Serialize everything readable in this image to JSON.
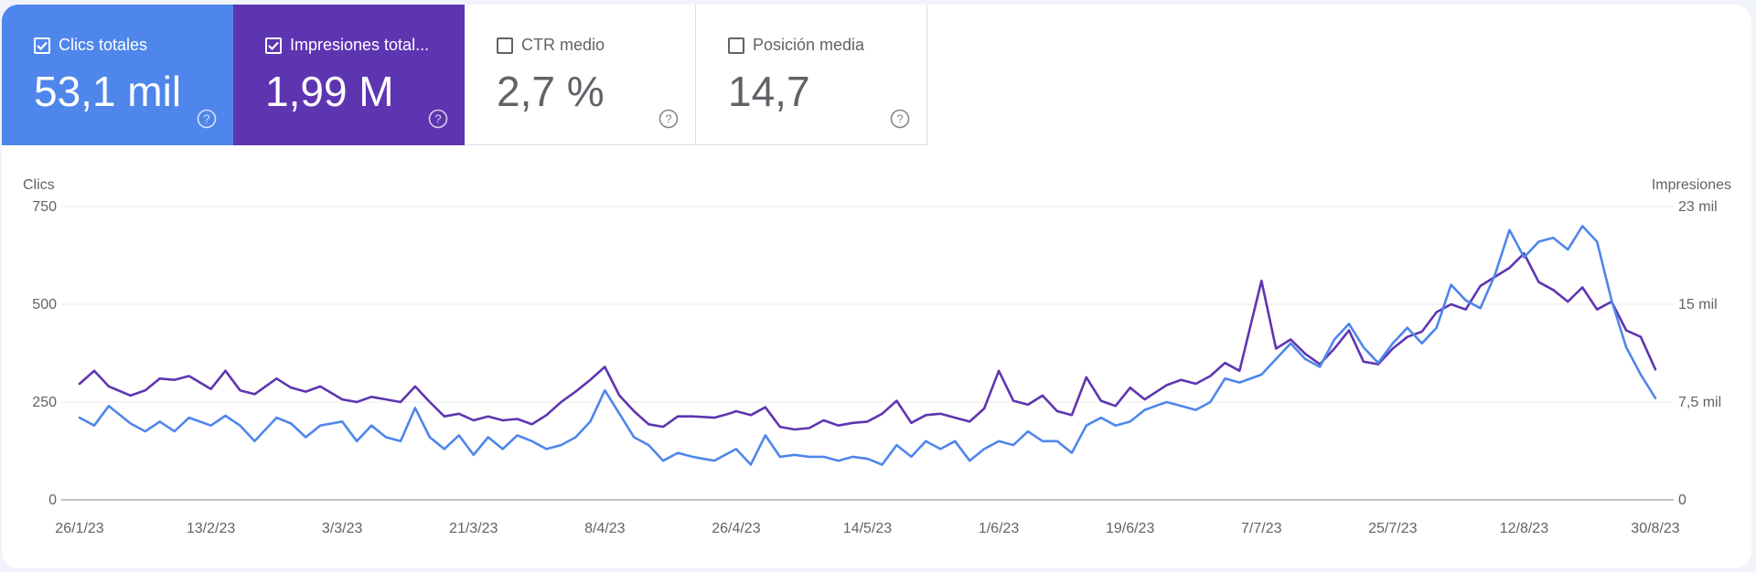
{
  "metrics": [
    {
      "label": "Clics totales",
      "value": "53,1 mil",
      "checked": true,
      "color": "#4f86ec"
    },
    {
      "label": "Impresiones total...",
      "value": "1,99 M",
      "checked": true,
      "color": "#5e35b1"
    },
    {
      "label": "CTR medio",
      "value": "2,7 %",
      "checked": false,
      "color": "#ffffff"
    },
    {
      "label": "Posición media",
      "value": "14,7",
      "checked": false,
      "color": "#ffffff"
    }
  ],
  "chart_data": {
    "type": "line",
    "ylabel_left": "Clics",
    "ylabel_right": "Impresiones",
    "y_left": {
      "min": 0,
      "max": 750,
      "ticks": [
        "0",
        "250",
        "500",
        "750"
      ]
    },
    "y_right": {
      "min": 0,
      "max": 22500,
      "ticks": [
        "0",
        "7,5 mil",
        "15 mil",
        "23 mil"
      ]
    },
    "x_start": "2023-01-26",
    "x_end": "2023-08-30",
    "x_ticks": [
      "26/1/23",
      "13/2/23",
      "3/3/23",
      "21/3/23",
      "8/4/23",
      "26/4/23",
      "14/5/23",
      "1/6/23",
      "19/6/23",
      "7/7/23",
      "25/7/23",
      "12/8/23",
      "30/8/23"
    ],
    "grid": true,
    "series": [
      {
        "name": "Clics totales",
        "axis": "left",
        "color": "#4f86ec",
        "points": [
          [
            "2023-01-26",
            210
          ],
          [
            "2023-01-28",
            190
          ],
          [
            "2023-01-30",
            240
          ],
          [
            "2023-02-02",
            195
          ],
          [
            "2023-02-04",
            175
          ],
          [
            "2023-02-06",
            200
          ],
          [
            "2023-02-08",
            175
          ],
          [
            "2023-02-10",
            210
          ],
          [
            "2023-02-13",
            190
          ],
          [
            "2023-02-15",
            215
          ],
          [
            "2023-02-17",
            190
          ],
          [
            "2023-02-19",
            150
          ],
          [
            "2023-02-22",
            210
          ],
          [
            "2023-02-24",
            195
          ],
          [
            "2023-02-26",
            160
          ],
          [
            "2023-02-28",
            190
          ],
          [
            "2023-03-03",
            200
          ],
          [
            "2023-03-05",
            150
          ],
          [
            "2023-03-07",
            190
          ],
          [
            "2023-03-09",
            160
          ],
          [
            "2023-03-11",
            150
          ],
          [
            "2023-03-13",
            235
          ],
          [
            "2023-03-15",
            160
          ],
          [
            "2023-03-17",
            130
          ],
          [
            "2023-03-19",
            165
          ],
          [
            "2023-03-21",
            115
          ],
          [
            "2023-03-23",
            160
          ],
          [
            "2023-03-25",
            130
          ],
          [
            "2023-03-27",
            165
          ],
          [
            "2023-03-29",
            150
          ],
          [
            "2023-03-31",
            130
          ],
          [
            "2023-04-02",
            140
          ],
          [
            "2023-04-04",
            160
          ],
          [
            "2023-04-06",
            200
          ],
          [
            "2023-04-08",
            280
          ],
          [
            "2023-04-10",
            220
          ],
          [
            "2023-04-12",
            160
          ],
          [
            "2023-04-14",
            140
          ],
          [
            "2023-04-16",
            100
          ],
          [
            "2023-04-18",
            120
          ],
          [
            "2023-04-20",
            110
          ],
          [
            "2023-04-23",
            100
          ],
          [
            "2023-04-25",
            120
          ],
          [
            "2023-04-26",
            130
          ],
          [
            "2023-04-28",
            90
          ],
          [
            "2023-04-30",
            165
          ],
          [
            "2023-05-02",
            110
          ],
          [
            "2023-05-04",
            115
          ],
          [
            "2023-05-06",
            110
          ],
          [
            "2023-05-08",
            110
          ],
          [
            "2023-05-10",
            100
          ],
          [
            "2023-05-12",
            110
          ],
          [
            "2023-05-14",
            105
          ],
          [
            "2023-05-16",
            90
          ],
          [
            "2023-05-18",
            140
          ],
          [
            "2023-05-20",
            110
          ],
          [
            "2023-05-22",
            150
          ],
          [
            "2023-05-24",
            130
          ],
          [
            "2023-05-26",
            150
          ],
          [
            "2023-05-28",
            100
          ],
          [
            "2023-05-30",
            130
          ],
          [
            "2023-06-01",
            150
          ],
          [
            "2023-06-03",
            140
          ],
          [
            "2023-06-05",
            175
          ],
          [
            "2023-06-07",
            150
          ],
          [
            "2023-06-09",
            150
          ],
          [
            "2023-06-11",
            120
          ],
          [
            "2023-06-13",
            190
          ],
          [
            "2023-06-15",
            210
          ],
          [
            "2023-06-17",
            190
          ],
          [
            "2023-06-19",
            200
          ],
          [
            "2023-06-21",
            230
          ],
          [
            "2023-06-24",
            250
          ],
          [
            "2023-06-26",
            240
          ],
          [
            "2023-06-28",
            230
          ],
          [
            "2023-06-30",
            250
          ],
          [
            "2023-07-02",
            310
          ],
          [
            "2023-07-04",
            300
          ],
          [
            "2023-07-07",
            320
          ],
          [
            "2023-07-09",
            360
          ],
          [
            "2023-07-11",
            400
          ],
          [
            "2023-07-13",
            360
          ],
          [
            "2023-07-15",
            340
          ],
          [
            "2023-07-17",
            410
          ],
          [
            "2023-07-19",
            450
          ],
          [
            "2023-07-21",
            390
          ],
          [
            "2023-07-23",
            350
          ],
          [
            "2023-07-25",
            400
          ],
          [
            "2023-07-27",
            440
          ],
          [
            "2023-07-29",
            400
          ],
          [
            "2023-07-31",
            440
          ],
          [
            "2023-08-02",
            550
          ],
          [
            "2023-08-04",
            510
          ],
          [
            "2023-08-06",
            490
          ],
          [
            "2023-08-08",
            575
          ],
          [
            "2023-08-10",
            690
          ],
          [
            "2023-08-12",
            620
          ],
          [
            "2023-08-14",
            660
          ],
          [
            "2023-08-16",
            670
          ],
          [
            "2023-08-18",
            640
          ],
          [
            "2023-08-20",
            700
          ],
          [
            "2023-08-22",
            660
          ],
          [
            "2023-08-24",
            510
          ],
          [
            "2023-08-26",
            390
          ],
          [
            "2023-08-28",
            320
          ],
          [
            "2023-08-30",
            260
          ]
        ]
      },
      {
        "name": "Impresiones totales",
        "axis": "right",
        "color": "#5e35b1",
        "points": [
          [
            "2023-01-26",
            8900
          ],
          [
            "2023-01-28",
            9900
          ],
          [
            "2023-01-30",
            8700
          ],
          [
            "2023-02-02",
            8000
          ],
          [
            "2023-02-04",
            8400
          ],
          [
            "2023-02-06",
            9300
          ],
          [
            "2023-02-08",
            9200
          ],
          [
            "2023-02-10",
            9500
          ],
          [
            "2023-02-13",
            8500
          ],
          [
            "2023-02-15",
            9900
          ],
          [
            "2023-02-17",
            8400
          ],
          [
            "2023-02-19",
            8100
          ],
          [
            "2023-02-22",
            9300
          ],
          [
            "2023-02-24",
            8600
          ],
          [
            "2023-02-26",
            8300
          ],
          [
            "2023-02-28",
            8700
          ],
          [
            "2023-03-03",
            7700
          ],
          [
            "2023-03-05",
            7500
          ],
          [
            "2023-03-07",
            7900
          ],
          [
            "2023-03-09",
            7700
          ],
          [
            "2023-03-11",
            7500
          ],
          [
            "2023-03-13",
            8700
          ],
          [
            "2023-03-15",
            7500
          ],
          [
            "2023-03-17",
            6400
          ],
          [
            "2023-03-19",
            6600
          ],
          [
            "2023-03-21",
            6100
          ],
          [
            "2023-03-23",
            6400
          ],
          [
            "2023-03-25",
            6100
          ],
          [
            "2023-03-27",
            6200
          ],
          [
            "2023-03-29",
            5800
          ],
          [
            "2023-03-31",
            6500
          ],
          [
            "2023-04-02",
            7500
          ],
          [
            "2023-04-04",
            8300
          ],
          [
            "2023-04-06",
            9200
          ],
          [
            "2023-04-08",
            10200
          ],
          [
            "2023-04-10",
            8000
          ],
          [
            "2023-04-12",
            6800
          ],
          [
            "2023-04-14",
            5800
          ],
          [
            "2023-04-16",
            5600
          ],
          [
            "2023-04-18",
            6400
          ],
          [
            "2023-04-20",
            6400
          ],
          [
            "2023-04-23",
            6300
          ],
          [
            "2023-04-25",
            6600
          ],
          [
            "2023-04-26",
            6800
          ],
          [
            "2023-04-28",
            6500
          ],
          [
            "2023-04-30",
            7100
          ],
          [
            "2023-05-02",
            5600
          ],
          [
            "2023-05-04",
            5400
          ],
          [
            "2023-05-06",
            5500
          ],
          [
            "2023-05-08",
            6100
          ],
          [
            "2023-05-10",
            5700
          ],
          [
            "2023-05-12",
            5900
          ],
          [
            "2023-05-14",
            6000
          ],
          [
            "2023-05-16",
            6600
          ],
          [
            "2023-05-18",
            7600
          ],
          [
            "2023-05-20",
            5900
          ],
          [
            "2023-05-22",
            6500
          ],
          [
            "2023-05-24",
            6600
          ],
          [
            "2023-05-26",
            6300
          ],
          [
            "2023-05-28",
            6000
          ],
          [
            "2023-05-30",
            7000
          ],
          [
            "2023-06-01",
            9900
          ],
          [
            "2023-06-03",
            7600
          ],
          [
            "2023-06-05",
            7300
          ],
          [
            "2023-06-07",
            8000
          ],
          [
            "2023-06-09",
            6800
          ],
          [
            "2023-06-11",
            6500
          ],
          [
            "2023-06-13",
            9400
          ],
          [
            "2023-06-15",
            7600
          ],
          [
            "2023-06-17",
            7200
          ],
          [
            "2023-06-19",
            8600
          ],
          [
            "2023-06-21",
            7700
          ],
          [
            "2023-06-24",
            8800
          ],
          [
            "2023-06-26",
            9200
          ],
          [
            "2023-06-28",
            8900
          ],
          [
            "2023-06-30",
            9500
          ],
          [
            "2023-07-02",
            10500
          ],
          [
            "2023-07-04",
            9900
          ],
          [
            "2023-07-07",
            16800
          ],
          [
            "2023-07-09",
            11600
          ],
          [
            "2023-07-11",
            12300
          ],
          [
            "2023-07-13",
            11200
          ],
          [
            "2023-07-15",
            10400
          ],
          [
            "2023-07-17",
            11600
          ],
          [
            "2023-07-19",
            13000
          ],
          [
            "2023-07-21",
            10600
          ],
          [
            "2023-07-23",
            10400
          ],
          [
            "2023-07-25",
            11600
          ],
          [
            "2023-07-27",
            12500
          ],
          [
            "2023-07-29",
            12900
          ],
          [
            "2023-07-31",
            14400
          ],
          [
            "2023-08-02",
            15000
          ],
          [
            "2023-08-04",
            14600
          ],
          [
            "2023-08-06",
            16400
          ],
          [
            "2023-08-08",
            17100
          ],
          [
            "2023-08-10",
            17800
          ],
          [
            "2023-08-12",
            18900
          ],
          [
            "2023-08-14",
            16700
          ],
          [
            "2023-08-16",
            16100
          ],
          [
            "2023-08-18",
            15200
          ],
          [
            "2023-08-20",
            16300
          ],
          [
            "2023-08-22",
            14600
          ],
          [
            "2023-08-24",
            15200
          ],
          [
            "2023-08-26",
            13000
          ],
          [
            "2023-08-28",
            12500
          ],
          [
            "2023-08-30",
            10000
          ]
        ]
      }
    ]
  }
}
